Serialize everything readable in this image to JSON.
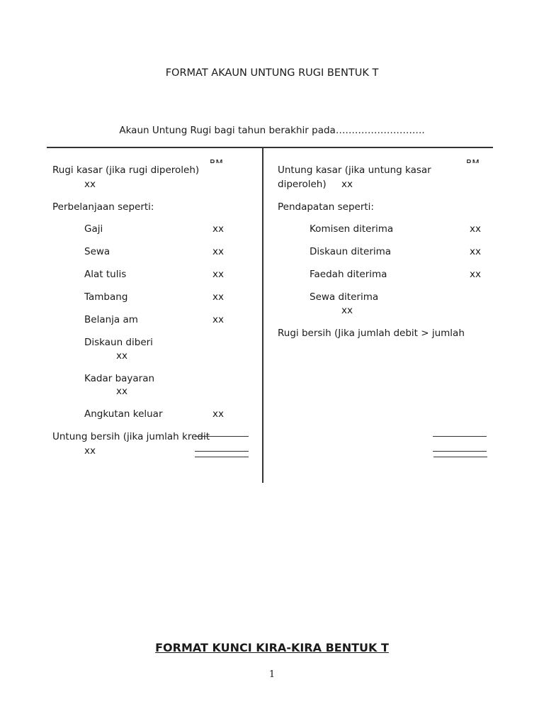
{
  "title": "FORMAT AKAUN UNTUNG RUGI BENTUK T",
  "subtitle": "Akaun Untung Rugi bagi tahun berakhir pada……………………….",
  "currency": "RM",
  "left": {
    "gross_loss": "Rugi kasar (jika rugi diperoleh)",
    "gross_loss_amt": "xx",
    "expenses_heading": "Perbelanjaan seperti:",
    "items": [
      {
        "label": "Gaji",
        "amt": "xx"
      },
      {
        "label": "Sewa",
        "amt": "xx"
      },
      {
        "label": "Alat tulis",
        "amt": "xx"
      },
      {
        "label": "Tambang",
        "amt": "xx"
      },
      {
        "label": "Belanja am",
        "amt": "xx"
      },
      {
        "label": "Diskaun diberi",
        "amt": "xx"
      },
      {
        "label": "Kadar bayaran",
        "amt": "xx"
      },
      {
        "label": "Angkutan keluar",
        "amt": "xx"
      }
    ],
    "net_profit": "Untung bersih (jika jumlah kredit",
    "net_profit_amt": "xx"
  },
  "right": {
    "gross_profit_1": "Untung kasar (jika untung kasar",
    "gross_profit_2": "diperoleh)",
    "gross_profit_amt": "xx",
    "income_heading": "Pendapatan seperti:",
    "items": [
      {
        "label": "Komisen diterima",
        "amt": "xx"
      },
      {
        "label": "Diskaun diterima",
        "amt": "xx"
      },
      {
        "label": "Faedah diterima",
        "amt": "xx"
      },
      {
        "label": "Sewa diterima",
        "amt": "xx"
      }
    ],
    "net_loss": "Rugi bersih (Jika jumlah debit > jumlah"
  },
  "next_title": "FORMAT KUNCI KIRA-KIRA BENTUK T",
  "page_number": "1"
}
